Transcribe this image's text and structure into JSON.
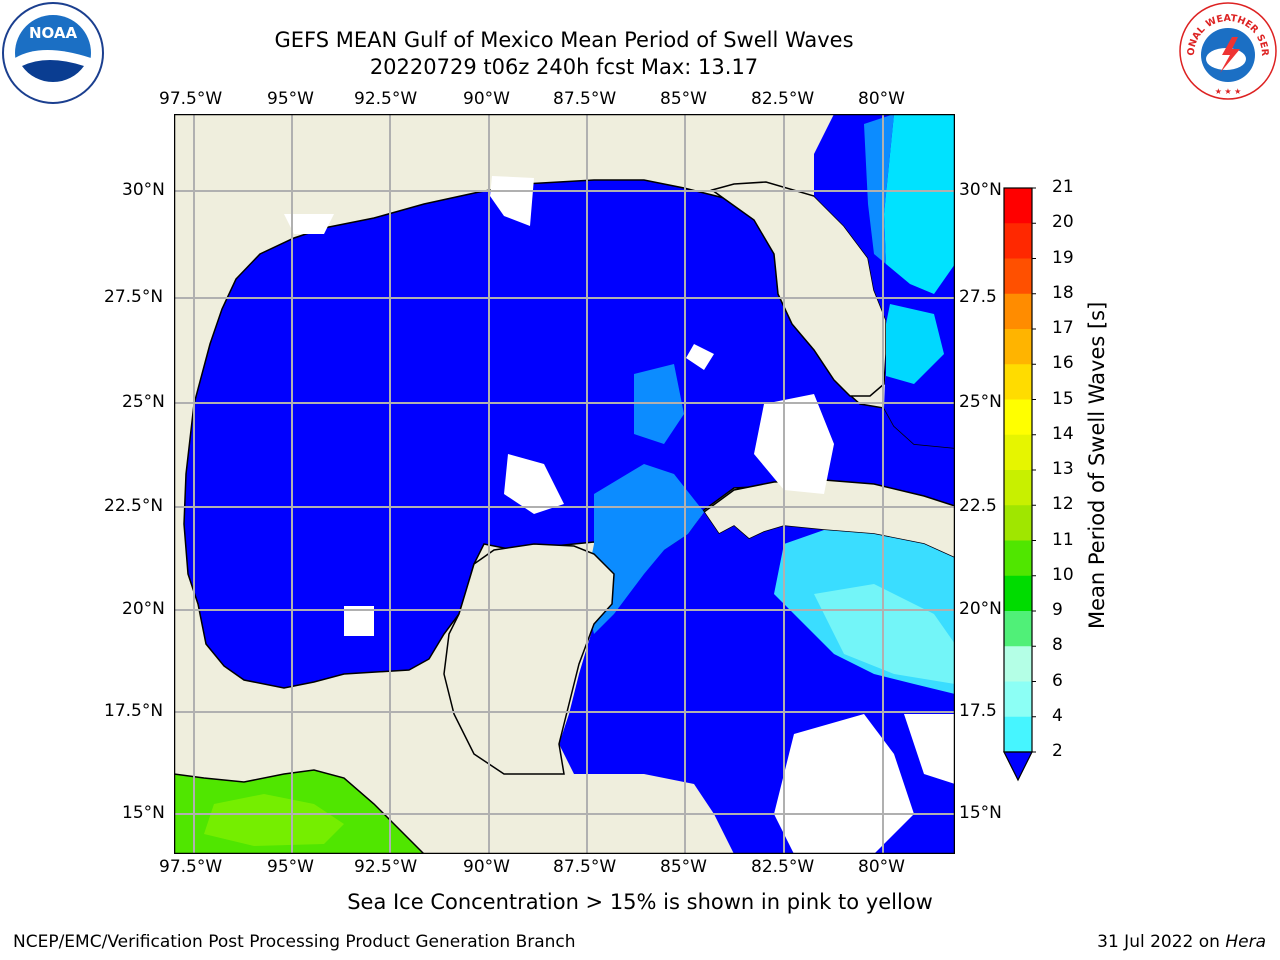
{
  "title": {
    "line1": "GEFS MEAN Gulf of Mexico Mean Period of Swell Waves",
    "line2": "20220729 t06z 240h fcst   Max: 13.17"
  },
  "logos": {
    "left": {
      "icon": "noaa-logo-icon",
      "text": "NOAA"
    },
    "right": {
      "icon": "nws-logo-icon",
      "text": "NATIONAL WEATHER SERVICE"
    }
  },
  "map": {
    "lon_labels": [
      "97.5°W",
      "95°W",
      "92.5°W",
      "90°W",
      "87.5°W",
      "85°W",
      "82.5°W",
      "80°W"
    ],
    "lat_labels_left": [
      "30°N",
      "27.5°N",
      "25°N",
      "22.5°N",
      "20°N",
      "17.5°N",
      "15°N"
    ],
    "lat_labels_right": [
      "30°N",
      "27.5",
      "25°N",
      "22.5",
      "20°N",
      "17.5",
      "15°N"
    ],
    "colors": {
      "land": "#efeedd",
      "sea": "#0000ff",
      "grid": "#b0b0b0",
      "coast": "#000000"
    }
  },
  "colorbar": {
    "label": "Mean Period of Swell Waves [s]",
    "ticks": [
      "2",
      "4",
      "6",
      "8",
      "9",
      "10",
      "11",
      "12",
      "13",
      "14",
      "15",
      "16",
      "17",
      "18",
      "19",
      "20",
      "21"
    ],
    "colors": [
      "#0064ff",
      "#00e6ff",
      "#46f5ff",
      "#8cfff5",
      "#b4ffe6",
      "#50f078",
      "#00dc00",
      "#50e600",
      "#a0e600",
      "#c8f000",
      "#e6f500",
      "#ffff00",
      "#ffdc00",
      "#ffb400",
      "#ff8c00",
      "#ff5000",
      "#ff2800",
      "#ff0000"
    ]
  },
  "note": "Sea Ice Concentration > 15% is shown in pink to yellow",
  "footer": {
    "left": "NCEP/EMC/Verification Post Processing Product Generation Branch",
    "right_prefix": "31 Jul 2022 on ",
    "right_host": "Hera"
  }
}
